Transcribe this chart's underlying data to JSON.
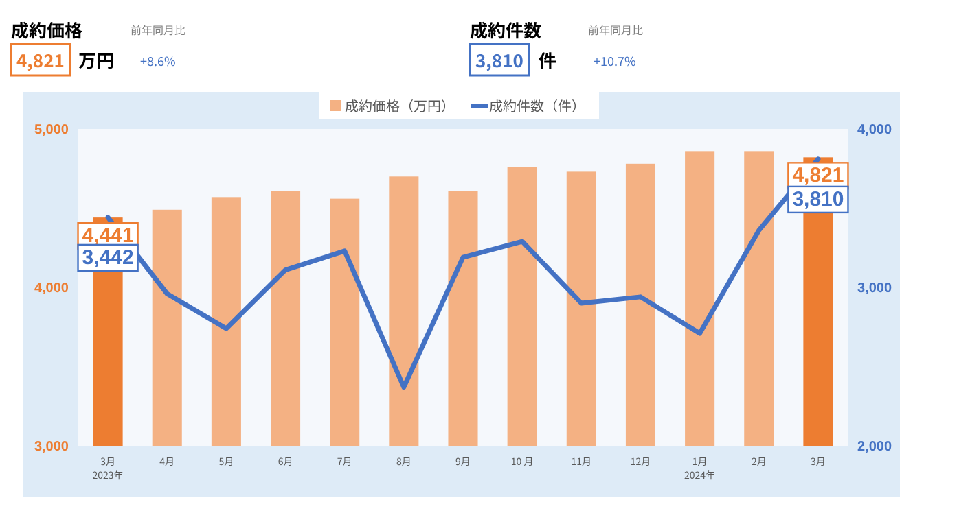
{
  "chart_data": {
    "type": "bar",
    "categories": [
      "3月\n2023年",
      "4月",
      "5月",
      "6月",
      "7月",
      "8月",
      "9月",
      "10 月",
      "11月",
      "12月",
      "1月\n2024年",
      "2月",
      "3月"
    ],
    "series": [
      {
        "name": "成約価格（万円）",
        "colors": [
          "#ed7d31",
          "#f4b183",
          "#f4b183",
          "#f4b183",
          "#f4b183",
          "#f4b183",
          "#f4b183",
          "#f4b183",
          "#f4b183",
          "#f4b183",
          "#f4b183",
          "#f4b183",
          "#ed7d31"
        ],
        "values": [
          4441,
          4490,
          4570,
          4610,
          4560,
          4700,
          4610,
          4760,
          4730,
          4780,
          4860,
          4860,
          4821
        ],
        "value_labels": [
          "4,441",
          null,
          null,
          null,
          null,
          null,
          null,
          null,
          null,
          null,
          null,
          null,
          "4,821"
        ]
      },
      {
        "name": "成約件数（件）",
        "type": "line",
        "color": "#4472c4",
        "axis": "y2",
        "values": [
          3442,
          2960,
          2740,
          3110,
          3230,
          2370,
          3190,
          3290,
          2900,
          2940,
          2710,
          3360,
          3810
        ],
        "value_labels": [
          "3,442",
          null,
          null,
          null,
          null,
          null,
          null,
          null,
          null,
          null,
          null,
          null,
          "3,810"
        ]
      }
    ],
    "ylim": [
      3000,
      5000
    ],
    "yticks": [
      {
        "value": 3000,
        "label": "3,000"
      },
      {
        "value": 4000,
        "label": "4,000"
      },
      {
        "value": 5000,
        "label": "5,000"
      }
    ],
    "y2lim": [
      2000,
      4000
    ],
    "y2ticks": [
      {
        "value": 2000,
        "label": "2,000"
      },
      {
        "value": 3000,
        "label": "3,000"
      },
      {
        "value": 4000,
        "label": "4,000"
      }
    ],
    "legend": "top",
    "grid": false,
    "annotations": [
      "成約価格",
      "前年同月比",
      "4,821",
      "万円",
      "+8.6%",
      "成約件数",
      "前年同月比",
      "3,810",
      "件",
      "+10.7%"
    ]
  }
}
